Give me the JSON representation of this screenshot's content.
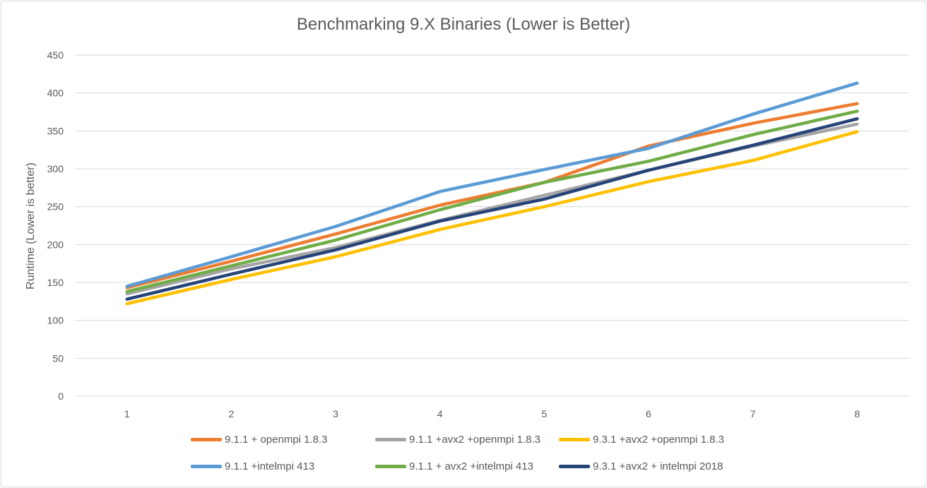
{
  "chart_data": {
    "type": "line",
    "title": "Benchmarking 9.X Binaries (Lower is Better)",
    "xlabel": "",
    "ylabel": "Runtime (Lower is better)",
    "categories": [
      "1",
      "2",
      "3",
      "4",
      "5",
      "6",
      "7",
      "8"
    ],
    "ylim": [
      0,
      450
    ],
    "yticks": [
      "0",
      "50",
      "100",
      "150",
      "200",
      "250",
      "300",
      "350",
      "400",
      "450"
    ],
    "grid": true,
    "legend_position": "bottom",
    "series": [
      {
        "name": "9.1.1 + openmpi 1.8.3",
        "color": "#ED7D31",
        "values": [
          143,
          178,
          214,
          252,
          282,
          330,
          360,
          386
        ]
      },
      {
        "name": "9.1.1 +avx2 +openmpi 1.8.3",
        "color": "#A5A5A5",
        "values": [
          135,
          168,
          196,
          232,
          265,
          298,
          330,
          359
        ]
      },
      {
        "name": "9.3.1 +avx2 +openmpi 1.8.3",
        "color": "#FFC000",
        "values": [
          122,
          154,
          184,
          220,
          250,
          283,
          311,
          349
        ]
      },
      {
        "name": "9.1.1 +intelmpi 413",
        "color": "#5B9BD5",
        "values": [
          145,
          184,
          224,
          270,
          299,
          327,
          372,
          413
        ]
      },
      {
        "name": "9.1.1 + avx2 +intelmpi 413",
        "color": "#70AD47",
        "values": [
          138,
          172,
          206,
          246,
          282,
          310,
          345,
          376
        ]
      },
      {
        "name": "9.3.1 +avx2 + intelmpi 2018",
        "color": "#264478",
        "values": [
          128,
          161,
          193,
          231,
          260,
          298,
          331,
          366
        ]
      }
    ]
  }
}
